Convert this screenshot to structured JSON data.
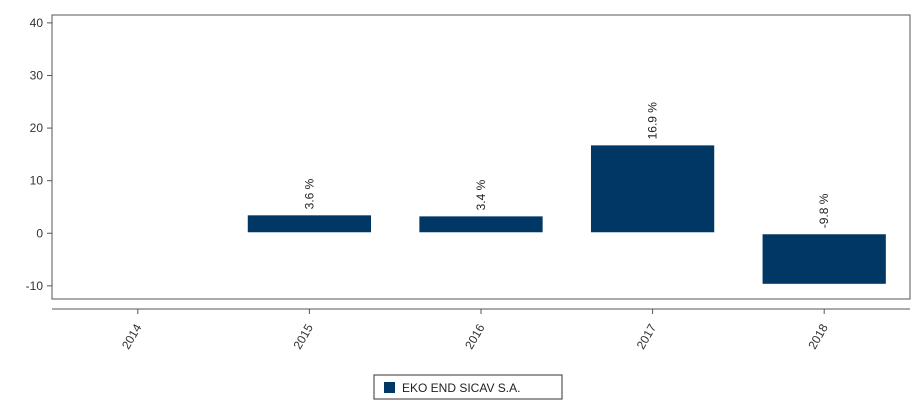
{
  "chart_data": {
    "type": "bar",
    "categories": [
      "2014",
      "2015",
      "2016",
      "2017",
      "2018"
    ],
    "series": [
      {
        "name": "EKO END SICAV S.A.",
        "values": [
          null,
          3.6,
          3.4,
          16.9,
          -9.8
        ],
        "labels": [
          "",
          "3.6 %",
          "3.4 %",
          "16.9 %",
          "-9.8 %"
        ],
        "color": "#003764"
      }
    ],
    "y_ticks": [
      40,
      30,
      20,
      10,
      0,
      -10
    ],
    "ylim": [
      -12.5,
      41.5
    ],
    "grid": false,
    "legend": "bottom-center"
  }
}
